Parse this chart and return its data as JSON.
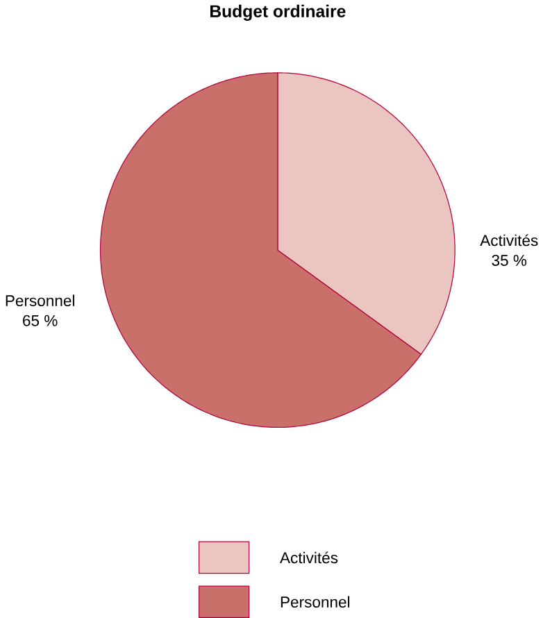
{
  "chart_data": {
    "type": "pie",
    "title": "Budget ordinaire",
    "categories": [
      "Activités",
      "Personnel"
    ],
    "values": [
      35,
      65
    ],
    "colors": [
      "#ebc6c1",
      "#c9706b"
    ],
    "value_labels": [
      "35 %",
      "65 %"
    ],
    "legend": "bottom"
  }
}
